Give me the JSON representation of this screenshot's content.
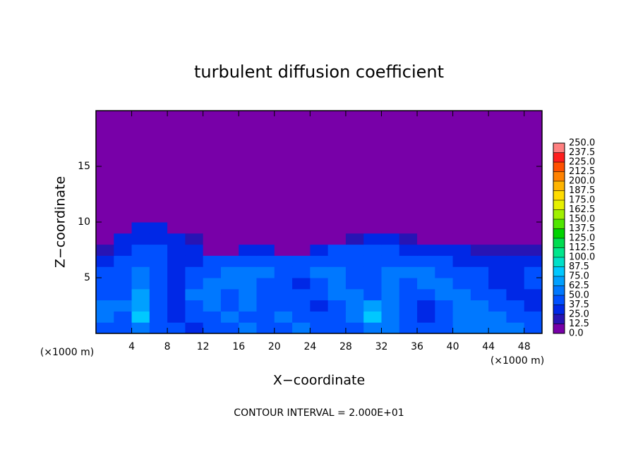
{
  "chart_data": {
    "type": "heatmap",
    "title": "turbulent diffusion coefficient",
    "xlabel": "X−coordinate",
    "ylabel": "Z−coordinate",
    "x_unit": "(×1000 m)",
    "footnote": "CONTOUR INTERVAL = 2.000E+01",
    "xlim": [
      0,
      50
    ],
    "ylim": [
      0,
      20
    ],
    "xticks": [
      4,
      8,
      12,
      16,
      20,
      24,
      28,
      32,
      36,
      40,
      44,
      48
    ],
    "yticks": [
      5,
      10,
      15
    ],
    "x_edges": [
      0,
      2,
      4,
      6,
      8,
      10,
      12,
      14,
      16,
      18,
      20,
      22,
      24,
      26,
      28,
      30,
      32,
      34,
      36,
      38,
      40,
      42,
      44,
      46,
      48,
      50
    ],
    "z_edges": [
      0,
      1,
      2,
      3,
      4,
      5,
      6,
      7,
      8,
      9,
      10,
      20
    ],
    "values": [
      [
        45,
        40,
        60,
        45,
        40,
        35,
        40,
        45,
        50,
        40,
        45,
        55,
        40,
        45,
        40,
        50,
        60,
        45,
        40,
        45,
        50,
        60,
        55,
        50,
        45
      ],
      [
        50,
        45,
        75,
        40,
        35,
        40,
        45,
        60,
        40,
        40,
        50,
        45,
        40,
        45,
        50,
        75,
        60,
        40,
        35,
        40,
        55,
        60,
        50,
        45,
        40
      ],
      [
        60,
        50,
        70,
        40,
        35,
        45,
        55,
        45,
        60,
        40,
        45,
        40,
        35,
        45,
        55,
        65,
        50,
        40,
        35,
        45,
        60,
        50,
        40,
        40,
        35
      ],
      [
        40,
        45,
        65,
        40,
        35,
        50,
        60,
        40,
        60,
        45,
        40,
        40,
        40,
        50,
        60,
        45,
        55,
        40,
        40,
        60,
        50,
        40,
        40,
        35,
        35
      ],
      [
        45,
        40,
        60,
        40,
        35,
        40,
        60,
        60,
        55,
        45,
        40,
        35,
        45,
        60,
        45,
        40,
        55,
        45,
        55,
        50,
        45,
        40,
        35,
        35,
        40
      ],
      [
        40,
        45,
        55,
        40,
        35,
        40,
        40,
        55,
        60,
        55,
        40,
        40,
        50,
        55,
        40,
        40,
        50,
        60,
        60,
        40,
        40,
        40,
        35,
        35,
        40
      ],
      [
        35,
        40,
        45,
        40,
        35,
        35,
        40,
        45,
        45,
        40,
        40,
        45,
        45,
        40,
        40,
        40,
        45,
        40,
        40,
        40,
        35,
        35,
        35,
        30,
        30
      ],
      [
        20,
        35,
        40,
        40,
        35,
        30,
        5,
        5,
        25,
        30,
        5,
        5,
        30,
        40,
        40,
        40,
        40,
        35,
        35,
        30,
        30,
        20,
        15,
        15,
        15
      ],
      [
        5,
        30,
        35,
        35,
        30,
        20,
        5,
        5,
        5,
        5,
        5,
        5,
        5,
        5,
        20,
        25,
        25,
        20,
        5,
        5,
        5,
        5,
        5,
        5,
        5
      ],
      [
        5,
        5,
        25,
        30,
        5,
        5,
        5,
        5,
        5,
        5,
        5,
        5,
        5,
        5,
        5,
        5,
        5,
        5,
        5,
        5,
        5,
        5,
        5,
        5,
        5
      ],
      [
        5,
        5,
        5,
        5,
        5,
        5,
        5,
        5,
        5,
        5,
        5,
        5,
        5,
        5,
        5,
        5,
        5,
        5,
        5,
        5,
        5,
        5,
        5,
        5,
        5
      ]
    ],
    "colorbar": {
      "levels": [
        {
          "value": 0,
          "label": "0.0"
        },
        {
          "value": 12.5,
          "label": "12.5"
        },
        {
          "value": 25,
          "label": "25.0"
        },
        {
          "value": 37.5,
          "label": "37.5"
        },
        {
          "value": 50,
          "label": "50.0"
        },
        {
          "value": 62.5,
          "label": "62.5"
        },
        {
          "value": 75,
          "label": "75.0"
        },
        {
          "value": 87.5,
          "label": "87.5"
        },
        {
          "value": 100,
          "label": "100.0"
        },
        {
          "value": 112.5,
          "label": "112.5"
        },
        {
          "value": 125,
          "label": "125.0"
        },
        {
          "value": 137.5,
          "label": "137.5"
        },
        {
          "value": 150,
          "label": "150.0"
        },
        {
          "value": 162.5,
          "label": "162.5"
        },
        {
          "value": 175,
          "label": "175.0"
        },
        {
          "value": 187.5,
          "label": "187.5"
        },
        {
          "value": 200,
          "label": "200.0"
        },
        {
          "value": 212.5,
          "label": "212.5"
        },
        {
          "value": 225,
          "label": "225.0"
        },
        {
          "value": 237.5,
          "label": "237.5"
        },
        {
          "value": 250,
          "label": "250.0"
        }
      ],
      "colors": [
        "#7800a8",
        "#2814b4",
        "#0028e6",
        "#0050ff",
        "#0078ff",
        "#00a0ff",
        "#00c8ff",
        "#00e0c8",
        "#00e68c",
        "#00dc50",
        "#00d200",
        "#50e600",
        "#a0f000",
        "#e6f000",
        "#ffdc00",
        "#ffb400",
        "#ff8200",
        "#ff5000",
        "#ff1e1e",
        "#ff8080"
      ]
    }
  }
}
